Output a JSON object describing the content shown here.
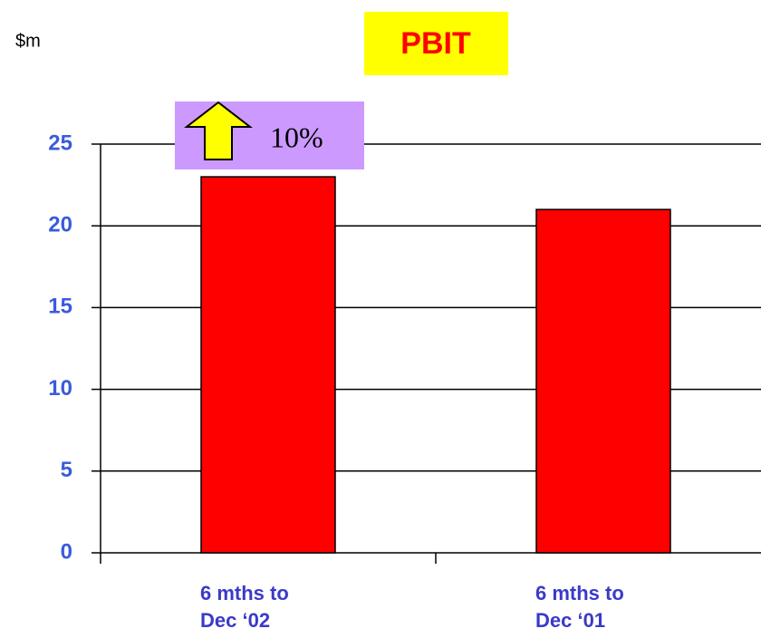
{
  "chart_data": {
    "type": "bar",
    "title": "PBIT",
    "y_axis_label": "$m",
    "annotation": "10%",
    "categories": [
      "6 mths to\nDec ‘02",
      "6 mths to\nDec ‘01"
    ],
    "values": [
      23,
      21
    ],
    "color": "#ff0000",
    "ylim": [
      0,
      25
    ],
    "yticks": [
      0,
      5,
      10,
      15,
      20,
      25
    ],
    "grid": true
  }
}
